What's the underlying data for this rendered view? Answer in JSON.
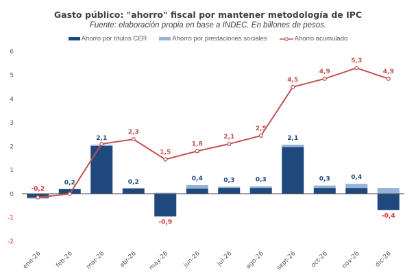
{
  "chart_data": {
    "type": "bar",
    "title": "Gasto público: \"ahorro\" fiscal por mantener metodología de IPC",
    "subtitle": "Fuente: elaboración propia en base a INDEC. En billones de pesos.",
    "xlabel": "",
    "ylabel": "",
    "ylim": [
      -2,
      6
    ],
    "yticks": [
      -2,
      -1,
      0,
      1,
      2,
      3,
      4,
      5,
      6
    ],
    "ytick_labels": [
      "-2",
      "-1",
      "0",
      "1",
      "2",
      "3",
      "4",
      "5",
      "6"
    ],
    "grid": false,
    "legend_position": "top",
    "stacked": true,
    "categories": [
      "ene-26",
      "feb-26",
      "mar-26",
      "abr-26",
      "may-26",
      "jun-26",
      "jul-26",
      "ago-26",
      "sept-26",
      "oct-26",
      "nov-26",
      "dic-26"
    ],
    "series": [
      {
        "name": "Ahorro por títulos CER",
        "type": "bar",
        "color": "#1f497d",
        "values": [
          -0.17,
          0.2,
          2.02,
          0.23,
          -0.95,
          0.22,
          0.25,
          0.25,
          1.97,
          0.25,
          0.25,
          -0.68
        ]
      },
      {
        "name": "Ahorro por prestaciones sociales",
        "type": "bar",
        "color": "#95b3d7",
        "values": [
          -0.03,
          0.0,
          0.05,
          0.0,
          0.05,
          0.15,
          0.05,
          0.07,
          0.1,
          0.1,
          0.17,
          0.25
        ]
      },
      {
        "name": "Ahorro acumulado",
        "type": "line",
        "color": "#c0504d",
        "values": [
          -0.15,
          0.0,
          2.1,
          2.3,
          1.45,
          1.8,
          2.1,
          2.45,
          4.5,
          4.85,
          5.3,
          4.85
        ]
      }
    ],
    "bar_labels": [
      "-0,2",
      "0,2",
      "2,1",
      "0,2",
      "-0,9",
      "0,4",
      "0,3",
      "0,3",
      "2,1",
      "0,3",
      "0,4",
      "-0,4"
    ],
    "line_labels": [
      "",
      "",
      "",
      "2,3",
      "1,5",
      "1,8",
      "2,1",
      "2,5",
      "4,5",
      "4,9",
      "5,3",
      "4,9"
    ],
    "colors": {
      "positive_label": "#1f497d",
      "negative_label": "#e0293a",
      "line_label": "#c0504d"
    }
  }
}
